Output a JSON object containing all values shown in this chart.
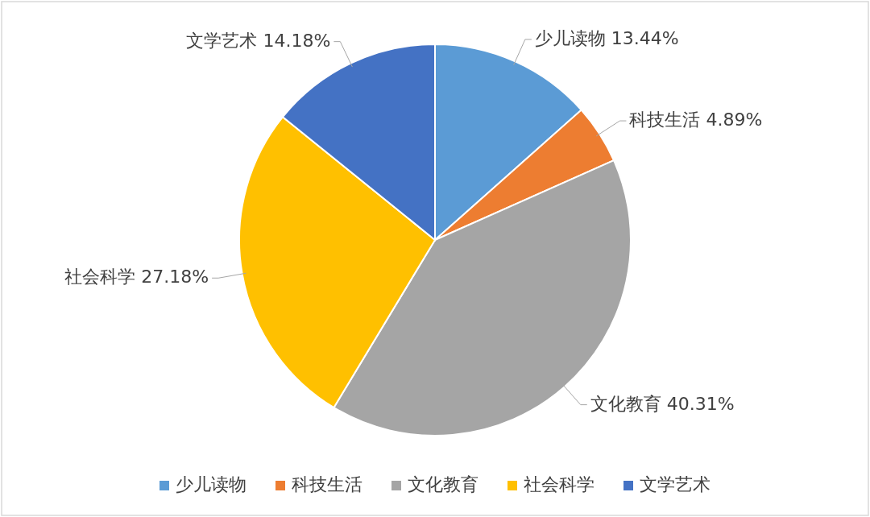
{
  "chart_data": {
    "type": "pie",
    "categories": [
      "少儿读物",
      "科技生活",
      "文化教育",
      "社会科学",
      "文学艺术"
    ],
    "values": [
      13.44,
      4.89,
      40.31,
      27.18,
      14.18
    ],
    "value_labels": [
      "13.44%",
      "4.89%",
      "40.31%",
      "27.18%",
      "14.18%"
    ],
    "colors": [
      "#5b9bd5",
      "#ed7d31",
      "#a5a5a5",
      "#ffc000",
      "#4472c4"
    ],
    "legend": "bottom"
  }
}
